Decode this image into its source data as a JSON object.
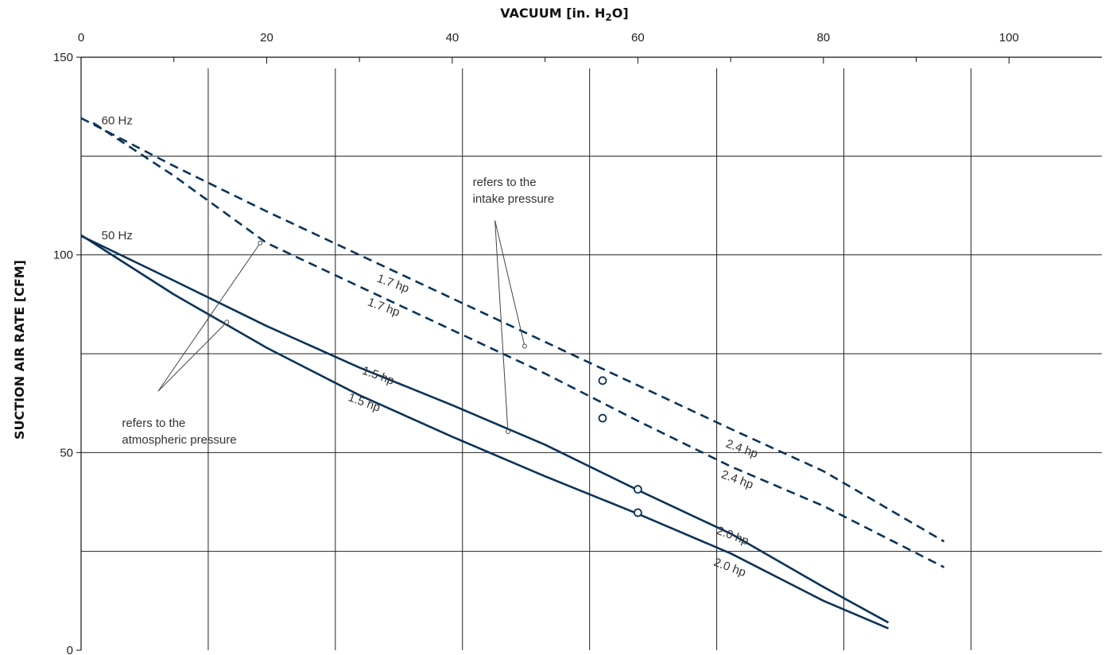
{
  "chart_data": {
    "type": "line",
    "title": "",
    "xlabel_parts": [
      "VACUUM  [in. H",
      "2",
      "O]"
    ],
    "ylabel": "SUCTION AIR RATE  [CFM]",
    "xlim": [
      0,
      110
    ],
    "ylim": [
      0,
      150
    ],
    "x_ticks": [
      0,
      20,
      40,
      60,
      80,
      100
    ],
    "x_minor_ticks": [
      10,
      30,
      50,
      70,
      90
    ],
    "y_ticks": [
      0,
      50,
      100,
      150
    ],
    "grid_x": [
      13.7,
      27.4,
      41.1,
      54.8,
      68.5,
      82.2,
      95.9
    ],
    "grid_y": [
      25,
      50,
      75,
      100,
      125
    ],
    "colors": {
      "curve": "#0a3358",
      "grid": "#222222",
      "marker_fill": "#ffffff"
    },
    "frequency_labels": [
      {
        "text": "60 Hz",
        "x": 2.2,
        "y": 133
      },
      {
        "text": "50 Hz",
        "x": 2.2,
        "y": 104
      }
    ],
    "series": [
      {
        "name": "60 Hz 1.7 hp / 2.4 hp (upper)",
        "style": "dashed",
        "points": [
          [
            0,
            134.6
          ],
          [
            10,
            122.5
          ],
          [
            20,
            111
          ],
          [
            30,
            100
          ],
          [
            40,
            89
          ],
          [
            50,
            78
          ],
          [
            60,
            67
          ],
          [
            70,
            56
          ],
          [
            80,
            45.3
          ],
          [
            93,
            27.5
          ]
        ]
      },
      {
        "name": "60 Hz 1.7 hp / 2.4 hp (lower)",
        "style": "dashed",
        "points": [
          [
            1.3,
            133.4
          ],
          [
            10,
            120
          ],
          [
            20,
            103
          ],
          [
            30,
            92
          ],
          [
            40,
            81
          ],
          [
            50,
            70
          ],
          [
            60,
            58
          ],
          [
            70,
            46.5
          ],
          [
            80,
            36.5
          ],
          [
            93,
            21
          ]
        ]
      },
      {
        "name": "50 Hz 1.5 hp / 2.0 hp (upper)",
        "style": "solid",
        "points": [
          [
            0,
            104.8
          ],
          [
            10,
            93.5
          ],
          [
            20,
            82
          ],
          [
            30,
            71.5
          ],
          [
            40,
            62
          ],
          [
            50,
            52
          ],
          [
            60,
            40.5
          ],
          [
            70,
            29.5
          ],
          [
            80,
            16
          ],
          [
            87,
            7
          ]
        ]
      },
      {
        "name": "50 Hz 1.5 hp / 2.0 hp (lower)",
        "style": "solid",
        "points": [
          [
            0,
            105
          ],
          [
            10,
            90
          ],
          [
            20,
            76.5
          ],
          [
            30,
            64.5
          ],
          [
            40,
            54
          ],
          [
            50,
            44
          ],
          [
            60,
            34.5
          ],
          [
            70,
            24.5
          ],
          [
            80,
            12.5
          ],
          [
            87,
            5.5
          ]
        ]
      }
    ],
    "markers": [
      {
        "x": 56.2,
        "y": 68.2
      },
      {
        "x": 56.2,
        "y": 58.7
      },
      {
        "x": 60.0,
        "y": 40.7
      },
      {
        "x": 60.0,
        "y": 34.8
      }
    ],
    "curve_labels": [
      {
        "text": "1.7 hp",
        "x": 31.8,
        "y": 93.3,
        "angle": 20
      },
      {
        "text": "1.7 hp",
        "x": 30.8,
        "y": 87.3,
        "angle": 20
      },
      {
        "text": "1.5 hp",
        "x": 30.2,
        "y": 70,
        "angle": 20
      },
      {
        "text": "1.5 hp",
        "x": 28.7,
        "y": 63.2,
        "angle": 20
      },
      {
        "text": "2.4 hp",
        "x": 69.4,
        "y": 51.5,
        "angle": 20
      },
      {
        "text": "2.4 hp",
        "x": 68.9,
        "y": 43.7,
        "angle": 20
      },
      {
        "text": "2.0 hp",
        "x": 68.4,
        "y": 29.5,
        "angle": 20
      },
      {
        "text": "2.0 hp",
        "x": 68.1,
        "y": 21.5,
        "angle": 20
      }
    ],
    "annotations": [
      {
        "lines": [
          "refers to the",
          "intake pressure"
        ],
        "x": 42.2,
        "y": 117.4,
        "leaders": [
          {
            "from": [
              44.6,
              108.7
            ],
            "to": [
              47.8,
              76.9
            ]
          },
          {
            "from": [
              44.6,
              108.7
            ],
            "to": [
              46.0,
              55.3
            ]
          }
        ]
      },
      {
        "lines": [
          "refers to the",
          "atmospheric pressure"
        ],
        "x": 4.4,
        "y": 56.5,
        "leaders": [
          {
            "from": [
              8.3,
              65.5
            ],
            "to": [
              19.3,
              103.0
            ]
          },
          {
            "from": [
              8.3,
              65.5
            ],
            "to": [
              15.7,
              83.0
            ]
          }
        ]
      }
    ]
  }
}
